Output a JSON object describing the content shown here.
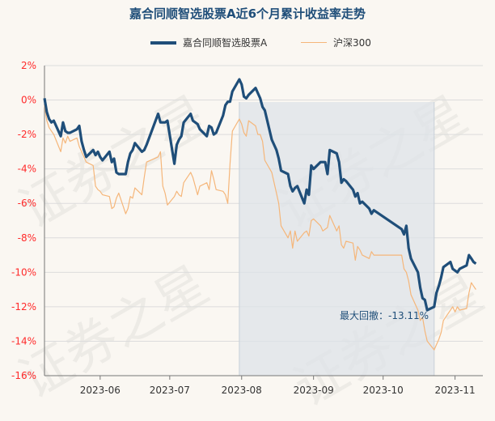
{
  "chart_data": {
    "type": "line",
    "title": "嘉合同顺智选股票A近6个月累计收益率走势",
    "ylim": [
      -16,
      2
    ],
    "yticks": [
      "2%",
      "0%",
      "-2%",
      "-4%",
      "-6%",
      "-8%",
      "-10%",
      "-12%",
      "-14%",
      "-16%"
    ],
    "ytick_values": [
      2,
      0,
      -2,
      -4,
      -6,
      -8,
      -10,
      -12,
      -14,
      -16
    ],
    "xticks": [
      "2023-06",
      "2023-07",
      "2023-08",
      "2023-09",
      "2023-10",
      "2023-11"
    ],
    "xtick_dates": [
      "2023-06-01",
      "2023-07-01",
      "2023-08-01",
      "2023-09-01",
      "2023-10-01",
      "2023-11-01"
    ],
    "x_range": [
      "2023-05-08",
      "2023-11-13"
    ],
    "grid": true,
    "legend_position": "top",
    "shaded_period": [
      "2023-07-31",
      "2023-10-23"
    ],
    "annotation": "最大回撤：-13.11%",
    "series": [
      {
        "name": "嘉合同顺智选股票A",
        "color": "#1f4e79",
        "points": [
          [
            "2023-05-08",
            0.1
          ],
          [
            "2023-05-09",
            -0.7
          ],
          [
            "2023-05-10",
            -1.1
          ],
          [
            "2023-05-11",
            -1.3
          ],
          [
            "2023-05-12",
            -1.2
          ],
          [
            "2023-05-15",
            -2.1
          ],
          [
            "2023-05-16",
            -1.3
          ],
          [
            "2023-05-17",
            -1.8
          ],
          [
            "2023-05-18",
            -1.9
          ],
          [
            "2023-05-19",
            -1.9
          ],
          [
            "2023-05-22",
            -1.7
          ],
          [
            "2023-05-23",
            -1.5
          ],
          [
            "2023-05-24",
            -2.4
          ],
          [
            "2023-05-25",
            -2.9
          ],
          [
            "2023-05-26",
            -3.3
          ],
          [
            "2023-05-29",
            -2.9
          ],
          [
            "2023-05-30",
            -3.2
          ],
          [
            "2023-05-31",
            -3.0
          ],
          [
            "2023-06-01",
            -3.3
          ],
          [
            "2023-06-02",
            -3.5
          ],
          [
            "2023-06-05",
            -3.0
          ],
          [
            "2023-06-06",
            -3.6
          ],
          [
            "2023-06-07",
            -3.4
          ],
          [
            "2023-06-08",
            -4.2
          ],
          [
            "2023-06-09",
            -4.3
          ],
          [
            "2023-06-12",
            -4.3
          ],
          [
            "2023-06-13",
            -3.6
          ],
          [
            "2023-06-14",
            -3.1
          ],
          [
            "2023-06-15",
            -2.9
          ],
          [
            "2023-06-16",
            -2.5
          ],
          [
            "2023-06-19",
            -3.0
          ],
          [
            "2023-06-20",
            -2.9
          ],
          [
            "2023-06-21",
            -2.6
          ],
          [
            "2023-06-26",
            -0.8
          ],
          [
            "2023-06-27",
            -1.3
          ],
          [
            "2023-06-28",
            -1.3
          ],
          [
            "2023-06-29",
            -1.3
          ],
          [
            "2023-06-30",
            -1.2
          ],
          [
            "2023-07-03",
            -3.7
          ],
          [
            "2023-07-04",
            -2.6
          ],
          [
            "2023-07-05",
            -2.3
          ],
          [
            "2023-07-06",
            -2.1
          ],
          [
            "2023-07-07",
            -1.3
          ],
          [
            "2023-07-10",
            -0.8
          ],
          [
            "2023-07-11",
            -1.2
          ],
          [
            "2023-07-12",
            -1.3
          ],
          [
            "2023-07-13",
            -1.4
          ],
          [
            "2023-07-14",
            -1.7
          ],
          [
            "2023-07-17",
            -2.1
          ],
          [
            "2023-07-18",
            -1.5
          ],
          [
            "2023-07-19",
            -1.6
          ],
          [
            "2023-07-20",
            -2.0
          ],
          [
            "2023-07-21",
            -1.9
          ],
          [
            "2023-07-24",
            -0.9
          ],
          [
            "2023-07-25",
            -0.3
          ],
          [
            "2023-07-26",
            -0.1
          ],
          [
            "2023-07-27",
            -0.1
          ],
          [
            "2023-07-28",
            0.5
          ],
          [
            "2023-07-31",
            1.2
          ],
          [
            "2023-08-01",
            0.9
          ],
          [
            "2023-08-02",
            0.2
          ],
          [
            "2023-08-03",
            0.1
          ],
          [
            "2023-08-04",
            0.3
          ],
          [
            "2023-08-07",
            0.7
          ],
          [
            "2023-08-08",
            0.4
          ],
          [
            "2023-08-09",
            0.1
          ],
          [
            "2023-08-10",
            -0.4
          ],
          [
            "2023-08-11",
            -0.6
          ],
          [
            "2023-08-14",
            -2.3
          ],
          [
            "2023-08-15",
            -2.6
          ],
          [
            "2023-08-16",
            -2.9
          ],
          [
            "2023-08-17",
            -3.4
          ],
          [
            "2023-08-18",
            -4.1
          ],
          [
            "2023-08-21",
            -4.3
          ],
          [
            "2023-08-22",
            -5.0
          ],
          [
            "2023-08-23",
            -5.3
          ],
          [
            "2023-08-24",
            -5.1
          ],
          [
            "2023-08-25",
            -5.0
          ],
          [
            "2023-08-28",
            -6.0
          ],
          [
            "2023-08-29",
            -5.2
          ],
          [
            "2023-08-30",
            -5.5
          ],
          [
            "2023-08-31",
            -3.8
          ],
          [
            "2023-09-01",
            -4.0
          ],
          [
            "2023-09-04",
            -3.6
          ],
          [
            "2023-09-05",
            -3.6
          ],
          [
            "2023-09-06",
            -3.6
          ],
          [
            "2023-09-07",
            -4.3
          ],
          [
            "2023-09-08",
            -2.9
          ],
          [
            "2023-09-11",
            -3.1
          ],
          [
            "2023-09-12",
            -3.6
          ],
          [
            "2023-09-13",
            -4.8
          ],
          [
            "2023-09-14",
            -4.6
          ],
          [
            "2023-09-15",
            -4.7
          ],
          [
            "2023-09-18",
            -5.2
          ],
          [
            "2023-09-19",
            -5.6
          ],
          [
            "2023-09-20",
            -5.4
          ],
          [
            "2023-09-21",
            -6.0
          ],
          [
            "2023-09-22",
            -5.9
          ],
          [
            "2023-09-25",
            -6.3
          ],
          [
            "2023-09-26",
            -6.6
          ],
          [
            "2023-09-27",
            -6.4
          ],
          [
            "2023-10-09",
            -7.5
          ],
          [
            "2023-10-10",
            -7.8
          ],
          [
            "2023-10-11",
            -7.3
          ],
          [
            "2023-10-12",
            -8.6
          ],
          [
            "2023-10-13",
            -9.2
          ],
          [
            "2023-10-16",
            -10.0
          ],
          [
            "2023-10-17",
            -10.9
          ],
          [
            "2023-10-18",
            -11.5
          ],
          [
            "2023-10-19",
            -11.6
          ],
          [
            "2023-10-20",
            -12.2
          ],
          [
            "2023-10-23",
            -12.0
          ],
          [
            "2023-10-24",
            -11.2
          ],
          [
            "2023-10-25",
            -10.8
          ],
          [
            "2023-10-26",
            -10.3
          ],
          [
            "2023-10-27",
            -9.7
          ],
          [
            "2023-10-30",
            -9.4
          ],
          [
            "2023-10-31",
            -9.8
          ],
          [
            "2023-11-01",
            -9.9
          ],
          [
            "2023-11-02",
            -10.0
          ],
          [
            "2023-11-03",
            -9.8
          ],
          [
            "2023-11-06",
            -9.6
          ],
          [
            "2023-11-07",
            -9.0
          ],
          [
            "2023-11-08",
            -9.2
          ],
          [
            "2023-11-09",
            -9.4
          ],
          [
            "2023-11-10",
            -9.5
          ]
        ]
      },
      {
        "name": "沪深300",
        "color": "#f5b67a",
        "points": [
          [
            "2023-05-08",
            -0.3
          ],
          [
            "2023-05-09",
            -1.2
          ],
          [
            "2023-05-10",
            -1.6
          ],
          [
            "2023-05-11",
            -1.8
          ],
          [
            "2023-05-12",
            -2.0
          ],
          [
            "2023-05-15",
            -3.0
          ],
          [
            "2023-05-16",
            -2.2
          ],
          [
            "2023-05-17",
            -2.5
          ],
          [
            "2023-05-18",
            -2.1
          ],
          [
            "2023-05-19",
            -2.4
          ],
          [
            "2023-05-22",
            -2.2
          ],
          [
            "2023-05-23",
            -2.7
          ],
          [
            "2023-05-24",
            -3.0
          ],
          [
            "2023-05-25",
            -3.3
          ],
          [
            "2023-05-26",
            -3.6
          ],
          [
            "2023-05-29",
            -3.8
          ],
          [
            "2023-05-30",
            -5.0
          ],
          [
            "2023-05-31",
            -5.2
          ],
          [
            "2023-06-01",
            -5.3
          ],
          [
            "2023-06-02",
            -5.5
          ],
          [
            "2023-06-05",
            -5.6
          ],
          [
            "2023-06-06",
            -6.3
          ],
          [
            "2023-06-07",
            -6.2
          ],
          [
            "2023-06-08",
            -5.7
          ],
          [
            "2023-06-09",
            -5.4
          ],
          [
            "2023-06-12",
            -6.6
          ],
          [
            "2023-06-13",
            -6.3
          ],
          [
            "2023-06-14",
            -5.6
          ],
          [
            "2023-06-15",
            -5.7
          ],
          [
            "2023-06-16",
            -5.1
          ],
          [
            "2023-06-19",
            -5.5
          ],
          [
            "2023-06-20",
            -4.5
          ],
          [
            "2023-06-21",
            -3.6
          ],
          [
            "2023-06-26",
            -3.3
          ],
          [
            "2023-06-27",
            -3.0
          ],
          [
            "2023-06-28",
            -5.0
          ],
          [
            "2023-06-29",
            -5.4
          ],
          [
            "2023-06-30",
            -6.1
          ],
          [
            "2023-07-03",
            -5.6
          ],
          [
            "2023-07-04",
            -5.3
          ],
          [
            "2023-07-05",
            -5.5
          ],
          [
            "2023-07-06",
            -5.6
          ],
          [
            "2023-07-07",
            -4.8
          ],
          [
            "2023-07-10",
            -4.2
          ],
          [
            "2023-07-11",
            -4.5
          ],
          [
            "2023-07-12",
            -5.0
          ],
          [
            "2023-07-13",
            -5.5
          ],
          [
            "2023-07-14",
            -5.0
          ],
          [
            "2023-07-17",
            -4.8
          ],
          [
            "2023-07-18",
            -5.2
          ],
          [
            "2023-07-19",
            -4.1
          ],
          [
            "2023-07-20",
            -4.6
          ],
          [
            "2023-07-21",
            -5.2
          ],
          [
            "2023-07-24",
            -5.3
          ],
          [
            "2023-07-25",
            -5.5
          ],
          [
            "2023-07-26",
            -6.0
          ],
          [
            "2023-07-27",
            -3.7
          ],
          [
            "2023-07-28",
            -1.8
          ],
          [
            "2023-07-31",
            -1.1
          ],
          [
            "2023-08-01",
            -1.4
          ],
          [
            "2023-08-02",
            -1.9
          ],
          [
            "2023-08-03",
            -2.1
          ],
          [
            "2023-08-04",
            -1.2
          ],
          [
            "2023-08-07",
            -1.5
          ],
          [
            "2023-08-08",
            -2.0
          ],
          [
            "2023-08-09",
            -2.0
          ],
          [
            "2023-08-10",
            -2.4
          ],
          [
            "2023-08-11",
            -3.5
          ],
          [
            "2023-08-14",
            -4.2
          ],
          [
            "2023-08-15",
            -4.8
          ],
          [
            "2023-08-16",
            -5.4
          ],
          [
            "2023-08-17",
            -6.0
          ],
          [
            "2023-08-18",
            -7.3
          ],
          [
            "2023-08-21",
            -8.0
          ],
          [
            "2023-08-22",
            -7.6
          ],
          [
            "2023-08-23",
            -8.6
          ],
          [
            "2023-08-24",
            -7.6
          ],
          [
            "2023-08-25",
            -8.2
          ],
          [
            "2023-08-28",
            -7.7
          ],
          [
            "2023-08-29",
            -7.6
          ],
          [
            "2023-08-30",
            -7.9
          ],
          [
            "2023-08-31",
            -7.0
          ],
          [
            "2023-09-01",
            -6.9
          ],
          [
            "2023-09-04",
            -7.3
          ],
          [
            "2023-09-05",
            -7.6
          ],
          [
            "2023-09-06",
            -7.5
          ],
          [
            "2023-09-07",
            -7.4
          ],
          [
            "2023-09-08",
            -6.7
          ],
          [
            "2023-09-11",
            -7.6
          ],
          [
            "2023-09-12",
            -7.3
          ],
          [
            "2023-09-13",
            -8.4
          ],
          [
            "2023-09-14",
            -8.6
          ],
          [
            "2023-09-15",
            -8.2
          ],
          [
            "2023-09-18",
            -8.3
          ],
          [
            "2023-09-19",
            -9.3
          ],
          [
            "2023-09-20",
            -8.5
          ],
          [
            "2023-09-21",
            -8.7
          ],
          [
            "2023-09-22",
            -9.0
          ],
          [
            "2023-09-25",
            -9.2
          ],
          [
            "2023-09-26",
            -8.8
          ],
          [
            "2023-09-27",
            -9.0
          ],
          [
            "2023-10-09",
            -9.0
          ],
          [
            "2023-10-10",
            -9.8
          ],
          [
            "2023-10-11",
            -10.0
          ],
          [
            "2023-10-12",
            -10.5
          ],
          [
            "2023-10-13",
            -11.3
          ],
          [
            "2023-10-16",
            -12.2
          ],
          [
            "2023-10-17",
            -12.8
          ],
          [
            "2023-10-18",
            -12.6
          ],
          [
            "2023-10-19",
            -13.4
          ],
          [
            "2023-10-20",
            -14.0
          ],
          [
            "2023-10-23",
            -14.5
          ],
          [
            "2023-10-24",
            -14.2
          ],
          [
            "2023-10-25",
            -13.9
          ],
          [
            "2023-10-26",
            -13.5
          ],
          [
            "2023-10-27",
            -12.8
          ],
          [
            "2023-10-30",
            -12.2
          ],
          [
            "2023-10-31",
            -12.0
          ],
          [
            "2023-11-01",
            -12.3
          ],
          [
            "2023-11-02",
            -12.0
          ],
          [
            "2023-11-03",
            -12.2
          ],
          [
            "2023-11-06",
            -12.1
          ],
          [
            "2023-11-07",
            -11.2
          ],
          [
            "2023-11-08",
            -10.6
          ],
          [
            "2023-11-09",
            -10.8
          ],
          [
            "2023-11-10",
            -11.0
          ]
        ]
      }
    ]
  }
}
